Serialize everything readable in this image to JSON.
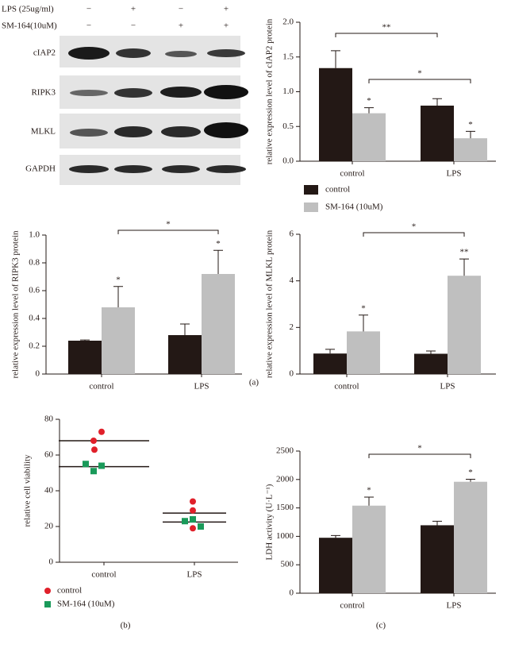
{
  "blot": {
    "treatments": [
      {
        "label": "LPS (25ug/ml)",
        "signs": [
          "−",
          "+",
          "−",
          "+"
        ]
      },
      {
        "label": "SM-164(10uM)",
        "signs": [
          "−",
          "−",
          "+",
          "+"
        ]
      }
    ],
    "proteins": [
      "cIAP2",
      "RIPK3",
      "MLKL",
      "GAPDH"
    ]
  },
  "panel_labels": [
    "(a)",
    "(b)",
    "(c)"
  ],
  "chart_data": [
    {
      "type": "bar",
      "y_label": "relative expression level of cIAP2 protein",
      "categories": [
        "control",
        "LPS"
      ],
      "series": [
        {
          "name": "control",
          "color": "#231815",
          "values": [
            1.34,
            0.8
          ],
          "errors": [
            0.25,
            0.1
          ]
        },
        {
          "name": "SM-164 (10uM)",
          "color": "#bfbfbf",
          "values": [
            0.69,
            0.33
          ],
          "errors": [
            0.08,
            0.1
          ],
          "stars": [
            "*",
            "*"
          ]
        }
      ],
      "brackets": [
        "**",
        "*"
      ],
      "ylim": [
        0,
        2
      ],
      "yticks": [
        {
          "value": 0,
          "label": "0.0"
        },
        0.5,
        {
          "value": 1,
          "label": "1.0"
        },
        1.5,
        {
          "value": 2,
          "label": "2.0"
        }
      ]
    },
    {
      "type": "bar",
      "y_label": "relative expression level of RIPK3 protein",
      "categories": [
        "control",
        "LPS"
      ],
      "series": [
        {
          "color": "#231815",
          "values": [
            0.24,
            0.28
          ],
          "errors": [
            0.005,
            0.08
          ]
        },
        {
          "color": "#bfbfbf",
          "values": [
            0.48,
            0.72
          ],
          "errors": [
            0.15,
            0.17
          ],
          "stars": [
            "*",
            "*"
          ]
        }
      ],
      "brackets": [
        "*"
      ],
      "ylim": [
        0,
        1
      ],
      "yticks": [
        0,
        0.2,
        0.4,
        0.6,
        0.8,
        {
          "value": 1,
          "label": "1.0"
        }
      ]
    },
    {
      "type": "bar",
      "y_label": "relative expression level of MLKL protein",
      "categories": [
        "control",
        "LPS"
      ],
      "series": [
        {
          "color": "#231815",
          "values": [
            0.88,
            0.87
          ],
          "errors": [
            0.18,
            0.12
          ]
        },
        {
          "color": "#bfbfbf",
          "values": [
            1.83,
            4.22
          ],
          "errors": [
            0.7,
            0.72
          ],
          "stars": [
            "*",
            "**"
          ]
        }
      ],
      "brackets": [
        "*"
      ],
      "ylim": [
        0,
        6
      ],
      "yticks": [
        0,
        2,
        4,
        6
      ]
    },
    {
      "type": "scatter",
      "y_label": "relative cell viability",
      "categories": [
        "control",
        "LPS"
      ],
      "series": [
        {
          "name": "control",
          "color": "#e0202a",
          "marker": "circle",
          "values": [
            [
              73,
              68,
              63
            ],
            [
              34,
              29,
              19
            ]
          ],
          "means": [
            68,
            27.5
          ]
        },
        {
          "name": "SM-164 (10uM)",
          "color": "#1a9a5a",
          "marker": "square",
          "values": [
            [
              55,
              54,
              51
            ],
            [
              23,
              24,
              20
            ]
          ],
          "means": [
            53.5,
            22.5
          ]
        }
      ],
      "ylim": [
        0,
        80
      ],
      "yticks": [
        0,
        20,
        40,
        60,
        80
      ]
    },
    {
      "type": "bar",
      "y_label": "LDH activity (U·L⁻¹)",
      "categories": [
        "control",
        "LPS"
      ],
      "series": [
        {
          "color": "#231815",
          "values": [
            975,
            1195
          ],
          "errors": [
            40,
            70
          ]
        },
        {
          "color": "#bfbfbf",
          "values": [
            1540,
            1960
          ],
          "errors": [
            150,
            45
          ],
          "stars": [
            "*",
            "*"
          ]
        }
      ],
      "brackets": [
        "*"
      ],
      "ylim": [
        0,
        2500
      ],
      "yticks": [
        0,
        500,
        1000,
        1500,
        2000,
        2500
      ]
    }
  ]
}
